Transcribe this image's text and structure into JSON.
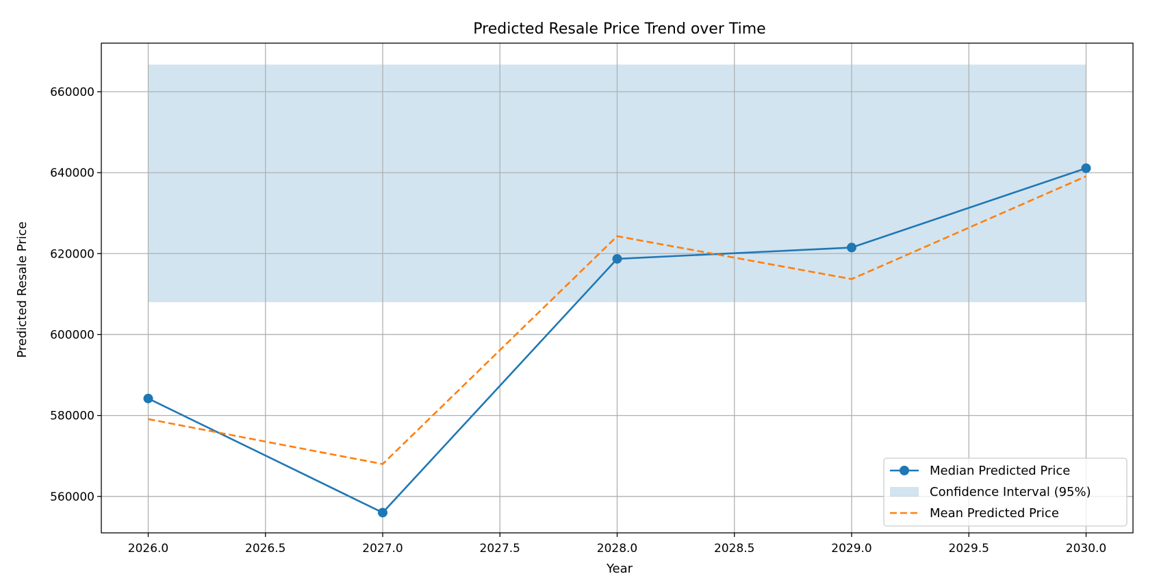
{
  "chart_data": {
    "type": "line",
    "title": "Predicted Resale Price Trend over Time",
    "xlabel": "Year",
    "ylabel": "Predicted Resale Price",
    "xlim": [
      2025.8,
      2030.2
    ],
    "ylim": [
      551000,
      672000
    ],
    "xticks": [
      2026.0,
      2026.5,
      2027.0,
      2027.5,
      2028.0,
      2028.5,
      2029.0,
      2029.5,
      2030.0
    ],
    "xtick_labels": [
      "2026.0",
      "2026.5",
      "2027.0",
      "2027.5",
      "2028.0",
      "2028.5",
      "2029.0",
      "2029.5",
      "2030.0"
    ],
    "yticks": [
      560000,
      580000,
      600000,
      620000,
      640000,
      660000
    ],
    "ytick_labels": [
      "560000",
      "580000",
      "600000",
      "620000",
      "640000",
      "660000"
    ],
    "grid": true,
    "legend_position": "lower-right",
    "x": [
      2026,
      2027,
      2028,
      2029,
      2030
    ],
    "series": [
      {
        "name": "Median Predicted Price",
        "kind": "line-marker",
        "color": "#1f77b4",
        "values": [
          584200,
          556000,
          618700,
          621500,
          641100
        ]
      },
      {
        "name": "Mean Predicted Price",
        "kind": "dashed-line",
        "color": "#ff7f0e",
        "values": [
          579100,
          568000,
          624300,
          613700,
          639100
        ]
      }
    ],
    "band": {
      "name": "Confidence Interval (95%)",
      "color": "#1f77b4",
      "opacity": 0.2,
      "x_range": [
        2026,
        2030
      ],
      "lower": 608000,
      "upper": 666700
    },
    "legend": [
      {
        "label": "Median Predicted Price",
        "kind": "line-marker",
        "color": "#1f77b4"
      },
      {
        "label": "Confidence Interval (95%)",
        "kind": "band",
        "color": "#1f77b4"
      },
      {
        "label": "Mean Predicted Price",
        "kind": "dashed-line",
        "color": "#ff7f0e"
      }
    ]
  }
}
